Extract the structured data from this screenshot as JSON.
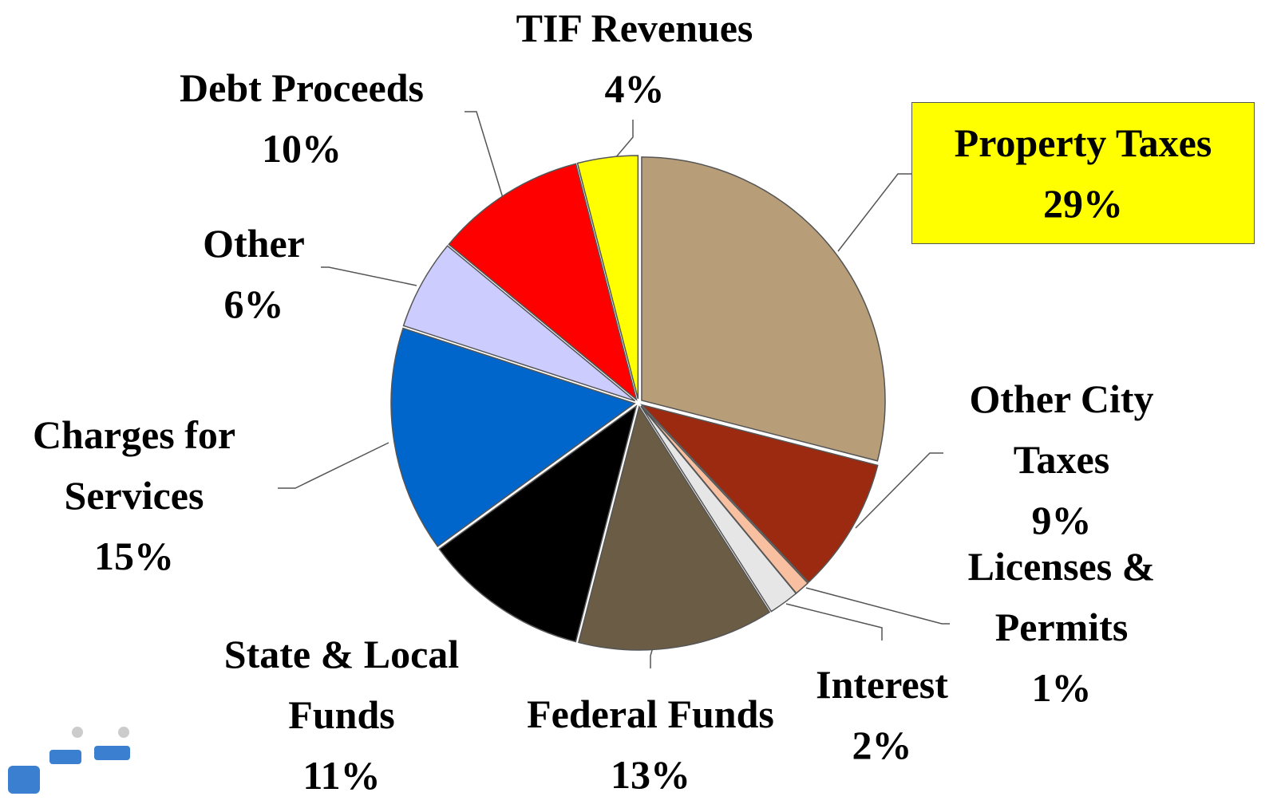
{
  "chart_data": {
    "type": "pie",
    "categories": [
      "Property Taxes",
      "Other City Taxes",
      "Licenses & Permits",
      "Interest",
      "Federal Funds",
      "State & Local Funds",
      "Charges for Services",
      "Other",
      "Debt Proceeds",
      "TIF Revenues"
    ],
    "values": [
      29,
      9,
      1,
      2,
      13,
      11,
      15,
      6,
      10,
      4
    ],
    "value_labels": [
      "29%",
      "9%",
      "1%",
      "2%",
      "13%",
      "11%",
      "15%",
      "6%",
      "10%",
      "4%"
    ],
    "colors": [
      "#b89e78",
      "#9b2a10",
      "#f8c0a0",
      "#e6e6e6",
      "#6b5c45",
      "#000000",
      "#0066cc",
      "#ccccff",
      "#ff0000",
      "#ffff00"
    ],
    "highlight_color": "#ffff00"
  }
}
